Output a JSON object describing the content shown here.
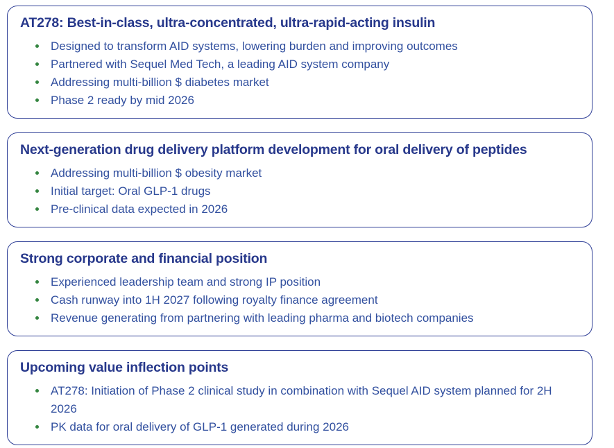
{
  "colors": {
    "border": "#2e3e96",
    "title_text": "#27388b",
    "body_text": "#32509f",
    "bullet_green": "#348540",
    "page_bg": "#ffffff"
  },
  "cards": [
    {
      "title": "AT278: Best-in-class, ultra-concentrated, ultra-rapid-acting insulin",
      "bullets": [
        "Designed to transform AID systems, lowering burden and improving outcomes",
        "Partnered with Sequel Med Tech, a leading AID system company",
        "Addressing multi-billion $ diabetes market",
        "Phase 2 ready by mid 2026"
      ]
    },
    {
      "title": "Next-generation drug delivery platform development for oral delivery of peptides",
      "bullets": [
        "Addressing multi-billion $ obesity market",
        "Initial target: Oral GLP-1 drugs",
        "Pre-clinical data expected in 2026"
      ]
    },
    {
      "title": "Strong corporate and financial position",
      "bullets": [
        "Experienced leadership team and strong IP position",
        "Cash runway into 1H 2027 following royalty finance agreement",
        "Revenue generating from partnering with leading pharma and biotech companies"
      ]
    },
    {
      "title": "Upcoming value inflection points",
      "bullets": [
        "AT278: Initiation of Phase 2 clinical study in combination with Sequel AID system planned for 2H 2026",
        "PK data for oral delivery of GLP-1 generated during 2026"
      ]
    }
  ]
}
